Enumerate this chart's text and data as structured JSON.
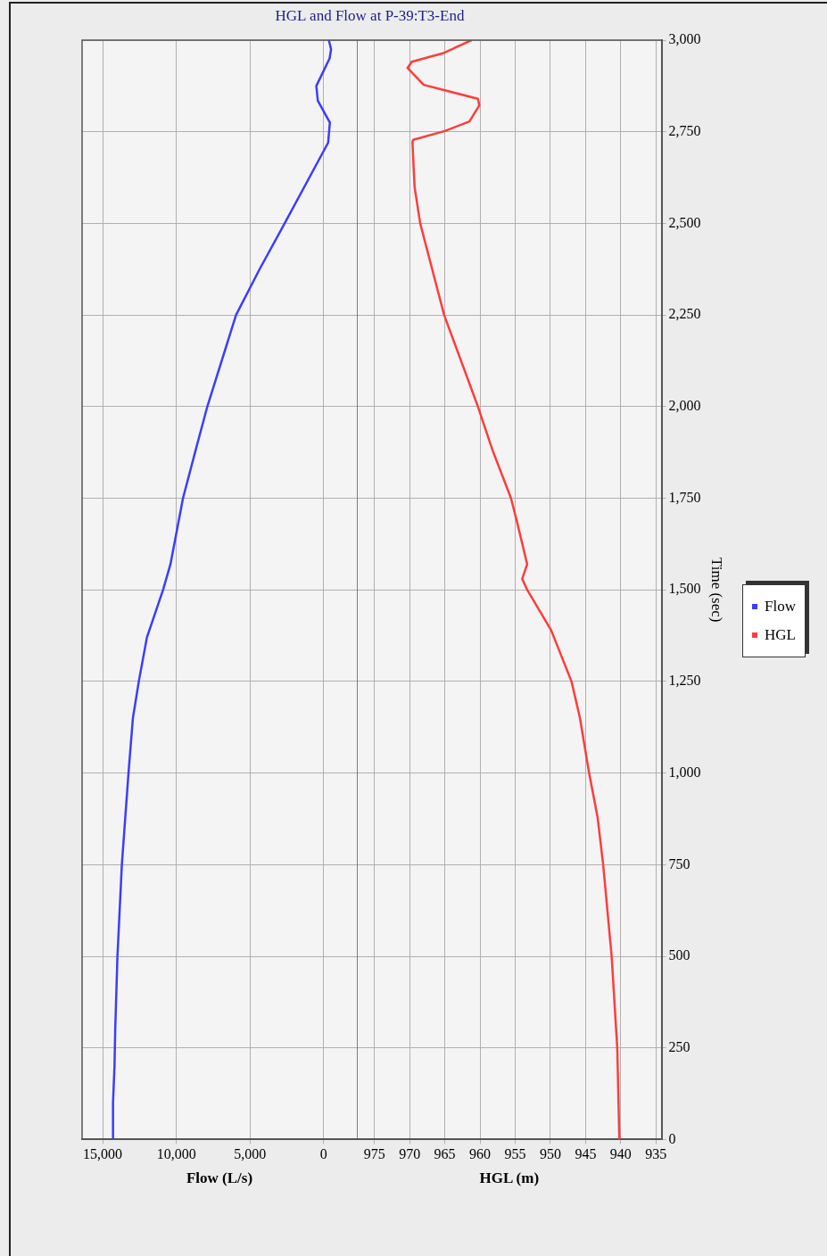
{
  "chart_data": [
    {
      "type": "line",
      "orientation": "horizontal",
      "title": "HGL and Flow at P-39:T3-End",
      "xlabel": "Flow (L/s)",
      "tick_labels": "x",
      "ylim": [
        0,
        3000
      ],
      "yticks": [
        0,
        250,
        500,
        750,
        1000,
        1250,
        1500,
        1750,
        2000,
        2250,
        2500,
        2750,
        3000
      ],
      "xlim": [
        16400,
        -2250
      ],
      "xticks": [
        {
          "value": 15000,
          "label": "15,000"
        },
        {
          "value": 10000,
          "label": "10,000"
        },
        {
          "value": 5000,
          "label": "5,000"
        },
        0
      ],
      "series": [
        {
          "name": "Flow",
          "color": "#3c3cff",
          "x": [
            0,
            100,
            200,
            300,
            500,
            750,
            1000,
            1150,
            1250,
            1370,
            1500,
            1570,
            1750,
            1880,
            2000,
            2250,
            2375,
            2500,
            2720,
            2775,
            2835,
            2875,
            2950,
            2975,
            3000
          ],
          "values": [
            14300,
            14300,
            14200,
            14150,
            14000,
            13700,
            13250,
            12950,
            12550,
            12000,
            10900,
            10400,
            9550,
            8700,
            7900,
            5950,
            4350,
            2650,
            -300,
            -420,
            400,
            500,
            -400,
            -500,
            -350
          ]
        }
      ],
      "grid": true,
      "legend": "right",
      "marker": "none",
      "line_style": "solid"
    },
    {
      "type": "line",
      "orientation": "horizontal",
      "xlabel": "HGL (m)",
      "ylabel": "Time (sec)",
      "ylim": [
        0,
        3000
      ],
      "yticks": [
        0,
        250,
        500,
        750,
        {
          "value": 1000,
          "label": "1,000"
        },
        {
          "value": 1250,
          "label": "1,250"
        },
        {
          "value": 1500,
          "label": "1,500"
        },
        {
          "value": 1750,
          "label": "1,750"
        },
        {
          "value": 2000,
          "label": "2,000"
        },
        {
          "value": 2250,
          "label": "2,250"
        },
        {
          "value": 2500,
          "label": "2,500"
        },
        {
          "value": 2750,
          "label": "2,750"
        },
        {
          "value": 3000,
          "label": "3,000"
        }
      ],
      "xlim": [
        977.5,
        934.2
      ],
      "xticks": [
        975,
        970,
        965,
        960,
        955,
        950,
        945,
        940,
        935
      ],
      "series": [
        {
          "name": "HGL",
          "color": "#ff3c3c",
          "x": [
            0,
            250,
            500,
            750,
            880,
            1000,
            1150,
            1250,
            1390,
            1500,
            1530,
            1570,
            1690,
            1750,
            1880,
            2000,
            2250,
            2375,
            2500,
            2600,
            2722,
            2728,
            2752,
            2778,
            2822,
            2840,
            2878,
            2924,
            2941,
            2964,
            3000
          ],
          "values": [
            940.2,
            940.5,
            941.3,
            942.5,
            943.3,
            944.5,
            945.8,
            947,
            949.9,
            953.3,
            954,
            953.3,
            954.8,
            955.6,
            958.2,
            960.3,
            965.1,
            966.8,
            968.5,
            969.3,
            969.6,
            969.5,
            965,
            961.5,
            960.1,
            960.3,
            968,
            970.3,
            969.7,
            965.3,
            961.2
          ]
        }
      ],
      "grid": true,
      "legend": "right",
      "marker": "none",
      "line_style": "solid"
    }
  ]
}
